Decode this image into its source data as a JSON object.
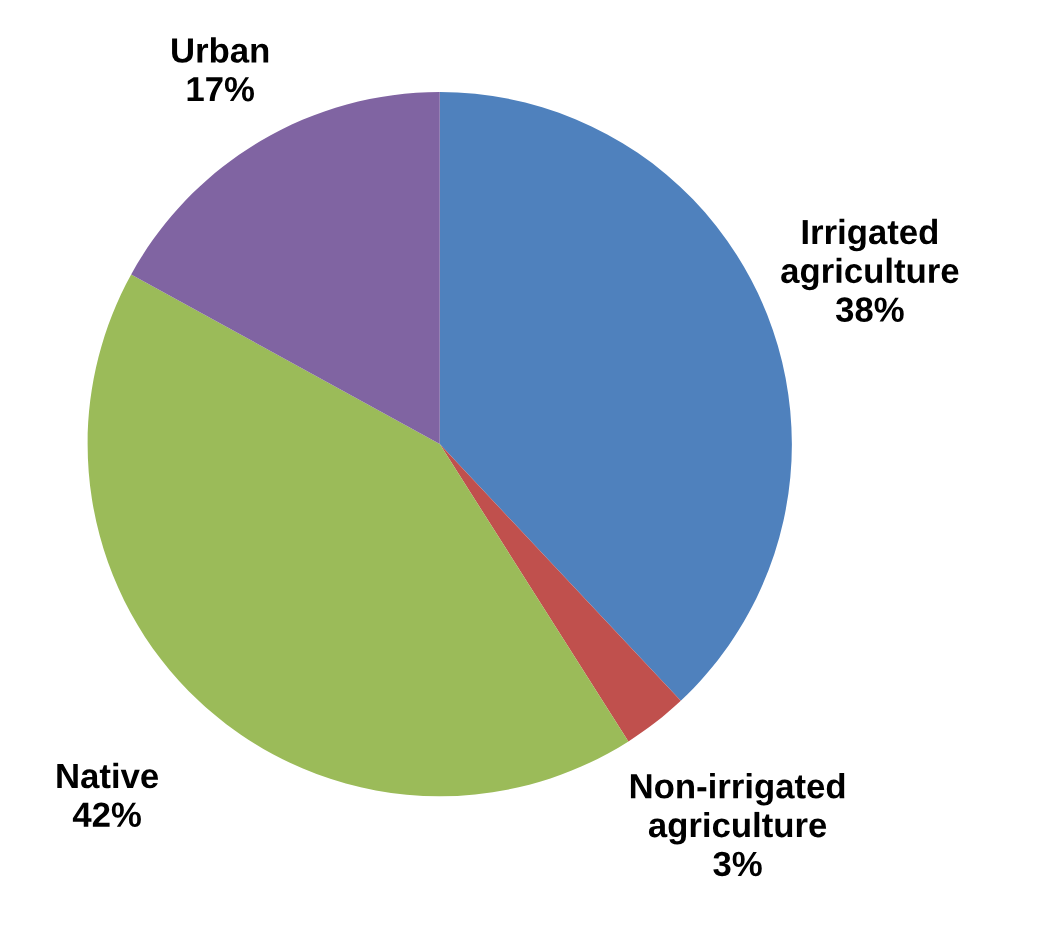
{
  "chart_data": {
    "type": "pie",
    "categories": [
      "Irrigated agriculture",
      "Non-irrigated agriculture",
      "Native",
      "Urban"
    ],
    "values": [
      38,
      3,
      42,
      17
    ],
    "value_labels": [
      "38%",
      "3%",
      "42%",
      "17%"
    ],
    "colors": [
      "#4f81bd",
      "#c0504d",
      "#9bbb59",
      "#8064a2"
    ]
  }
}
